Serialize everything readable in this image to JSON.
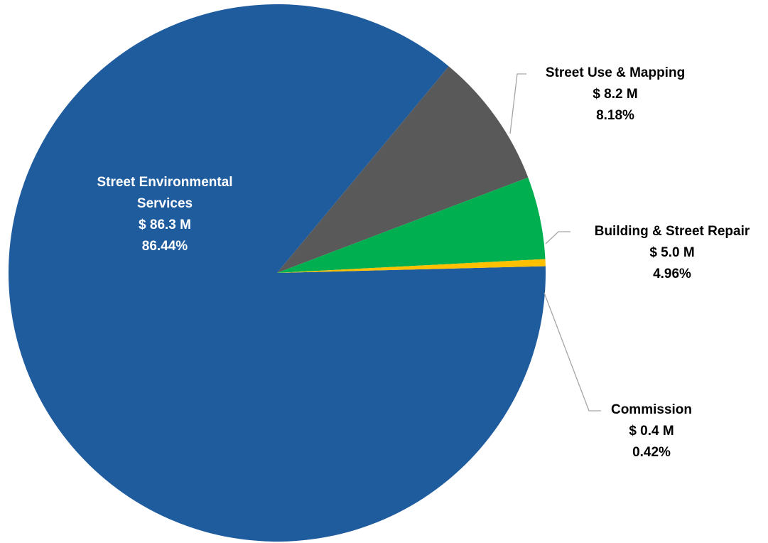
{
  "chart_data": {
    "type": "pie",
    "title": "",
    "slices": [
      {
        "name": "Street Environmental Services",
        "value": 86.3,
        "amount_label": "$ 86.3 M",
        "percent": 86.44,
        "percent_label": "86.44%",
        "color": "#1f5c9e"
      },
      {
        "name": "Street Use & Mapping",
        "value": 8.2,
        "amount_label": "$ 8.2 M",
        "percent": 8.18,
        "percent_label": "8.18%",
        "color": "#595959"
      },
      {
        "name": "Building & Street Repair",
        "value": 5.0,
        "amount_label": "$ 5.0 M",
        "percent": 4.96,
        "percent_label": "4.96%",
        "color": "#00b050"
      },
      {
        "name": "Commission",
        "value": 0.4,
        "amount_label": "$ 0.4 M",
        "percent": 0.42,
        "percent_label": "0.42%",
        "color": "#ffc000"
      }
    ],
    "label_colors": {
      "inside": "#ffffff",
      "outside": "#000000"
    }
  }
}
